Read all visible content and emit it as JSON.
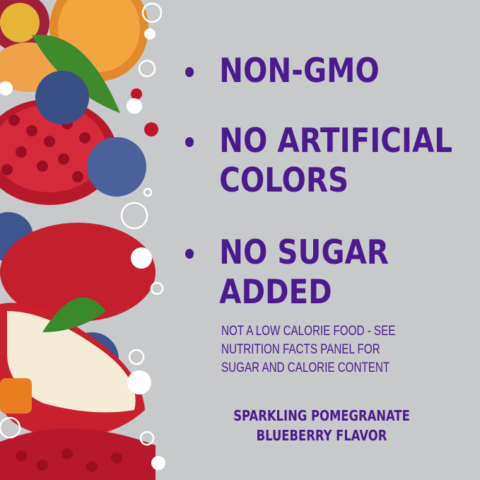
{
  "claims": [
    {
      "lines": [
        "NON-GMO"
      ]
    },
    {
      "lines": [
        "NO ARTIFICIAL",
        "COLORS"
      ]
    },
    {
      "lines": [
        "NO SUGAR",
        "ADDED"
      ]
    }
  ],
  "disclaimer": [
    "NOT A LOW CALORIE FOOD - SEE",
    "NUTRITION FACTS PANEL FOR",
    "SUGAR AND CALORIE CONTENT"
  ],
  "flavor": [
    "SPARKLING POMEGRANATE",
    "BLUEBERRY FLAVOR"
  ],
  "colors": {
    "text": "#4b1a8c",
    "background": "#c8c9cb"
  }
}
